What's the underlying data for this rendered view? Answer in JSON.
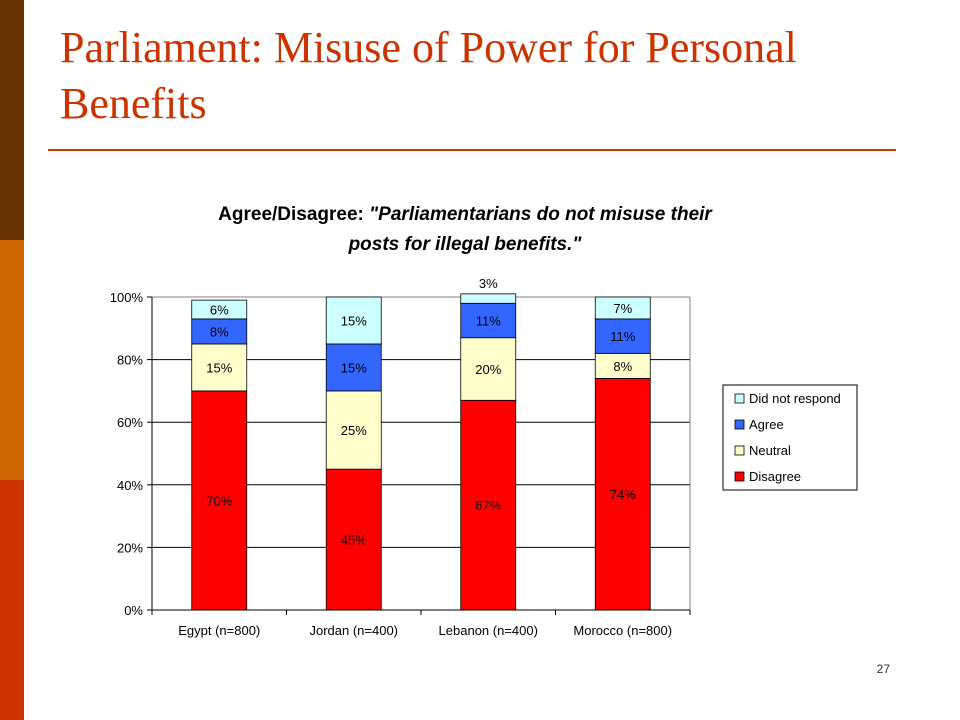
{
  "slide": {
    "title": "Parliament: Misuse of Power for Personal Benefits",
    "page_number": "27",
    "colors": {
      "title": "#cc3300",
      "bar_dark": "#663300",
      "bar_mid": "#cc6600",
      "bar_light": "#cc3300"
    }
  },
  "chart_data": {
    "type": "bar",
    "stacked": true,
    "title_prefix": "Agree/Disagree: ",
    "title_quote_line1": "\"Parliamentarians do not misuse their",
    "title_quote_line2": "posts for illegal benefits.\"",
    "categories": [
      "Egypt (n=800)",
      "Jordan (n=400)",
      "Lebanon (n=400)",
      "Morocco (n=800)"
    ],
    "series": [
      {
        "name": "Disagree",
        "values": [
          70,
          45,
          67,
          74
        ],
        "labels": [
          "70%",
          "45%",
          "67%",
          "74%"
        ],
        "color": "#ff0000"
      },
      {
        "name": "Neutral",
        "values": [
          15,
          25,
          20,
          8
        ],
        "labels": [
          "15%",
          "25%",
          "20%",
          "8%"
        ],
        "color": "#ffffcc"
      },
      {
        "name": "Agree",
        "values": [
          8,
          15,
          11,
          11
        ],
        "labels": [
          "8%",
          "15%",
          "11%",
          "11%"
        ],
        "color": "#3366ff"
      },
      {
        "name": "Did not respond",
        "values": [
          6,
          15,
          3,
          7
        ],
        "labels": [
          "6%",
          "15%",
          "3%",
          "7%"
        ],
        "color": "#ccffff"
      }
    ],
    "legend_order": [
      "Did not respond",
      "Agree",
      "Neutral",
      "Disagree"
    ],
    "legend_position": "right",
    "y_ticks": [
      "0%",
      "20%",
      "40%",
      "60%",
      "80%",
      "100%"
    ],
    "ylim": [
      0,
      100
    ],
    "grid": true
  }
}
